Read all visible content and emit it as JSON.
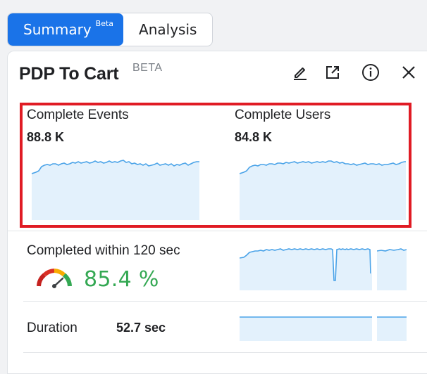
{
  "tabs": {
    "summary_label": "Summary",
    "summary_badge": "Beta",
    "analysis_label": "Analysis"
  },
  "card": {
    "title": "PDP To Cart",
    "title_badge": "BETA",
    "actions": {
      "edit": "pencil-icon",
      "open": "external-link-icon",
      "info": "info-icon",
      "close": "close-icon"
    }
  },
  "metrics": {
    "events_label": "Complete Events",
    "events_value": "88.8 K",
    "users_label": "Complete Users",
    "users_value": "84.8 K"
  },
  "completion": {
    "label": "Completed within 120 sec",
    "percent": "85.4 %",
    "gauge_level": 0.854
  },
  "duration": {
    "label": "Duration",
    "value": "52.7 sec"
  },
  "colors": {
    "accent": "#1a73e8",
    "spark_line": "#4aa3e8",
    "spark_fill": "#e3f1fc",
    "highlight": "#e01b24",
    "success": "#34a853"
  }
}
